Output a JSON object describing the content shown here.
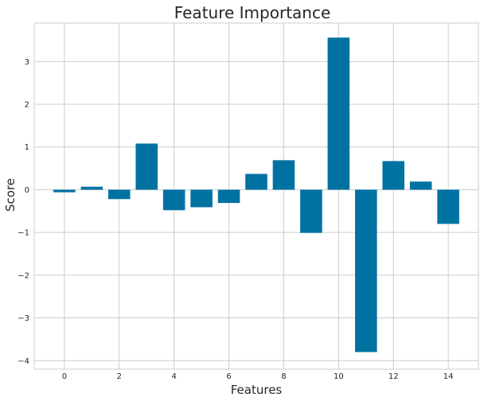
{
  "chart_data": {
    "type": "bar",
    "title": "Feature Importance",
    "xlabel": "Features",
    "ylabel": "Score",
    "x": [
      0,
      1,
      2,
      3,
      4,
      5,
      6,
      7,
      8,
      9,
      10,
      11,
      12,
      13,
      14
    ],
    "values": [
      -0.06,
      0.07,
      -0.22,
      1.08,
      -0.48,
      -0.41,
      -0.31,
      0.37,
      0.69,
      -1.01,
      3.56,
      -3.8,
      0.67,
      0.19,
      -0.8
    ],
    "xlim": [
      -1.1,
      15.1
    ],
    "ylim": [
      -4.2,
      3.9
    ],
    "xticks": [
      0,
      2,
      4,
      6,
      8,
      10,
      12,
      14
    ],
    "yticks": [
      -4,
      -3,
      -2,
      -1,
      0,
      1,
      2,
      3
    ],
    "grid": true,
    "bar_color": "#0072a2"
  }
}
